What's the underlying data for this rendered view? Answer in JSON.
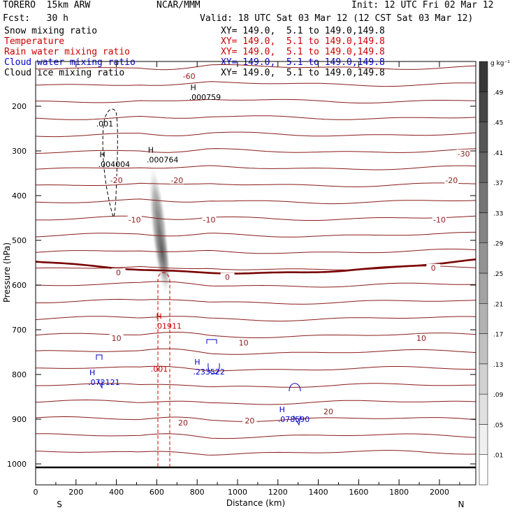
{
  "header": {
    "model": "TORERO  15km ARW",
    "center": "NCAR/MMM",
    "init": "Init: 12 UTC Fri 02 Mar 12",
    "fcst": "Fcst:   30 h",
    "valid": "Valid: 18 UTC Sat 03 Mar 12 (12 CST Sat 03 Mar 12)"
  },
  "legend": [
    {
      "label": "Snow mixing ratio",
      "xy": "XY= 149.0,  5.1 to 149.0,149.8",
      "color": "#000000"
    },
    {
      "label": "Temperature",
      "xy": "XY= 149.0,  5.1 to 149.0,149.8",
      "color": "#cc0000"
    },
    {
      "label": "Rain water mixing ratio",
      "xy": "XY= 149.0,  5.1 to 149.0,149.8",
      "color": "#cc0000"
    },
    {
      "label": "Cloud water mixing ratio",
      "xy": "XY= 149.0,  5.1 to 149.0,149.8",
      "color": "#0000cc"
    },
    {
      "label": "Cloud ice mixing ratio",
      "xy": "XY= 149.0,  5.1 to 149.0,149.8",
      "color": "#000000"
    }
  ],
  "chart_data": {
    "type": "cross-section contour",
    "xlabel": "Distance (km)",
    "ylabel": "Pressure (hPa)",
    "xlim": [
      0,
      2180
    ],
    "ylim": [
      1050,
      100
    ],
    "x_ticks": [
      "0",
      "200",
      "400",
      "600",
      "800",
      "1000",
      "1200",
      "1400",
      "1600",
      "1800",
      "2000"
    ],
    "y_ticks": [
      "200",
      "300",
      "400",
      "500",
      "600",
      "700",
      "800",
      "900",
      "1000"
    ],
    "left_end": "S",
    "right_end": "N",
    "temperature_labels": [
      {
        "x": 760,
        "p": 133,
        "text": "-60"
      },
      {
        "x": 2120,
        "p": 306,
        "text": "-30"
      },
      {
        "x": 400,
        "p": 366,
        "text": "-20"
      },
      {
        "x": 700,
        "p": 366,
        "text": "-20"
      },
      {
        "x": 2060,
        "p": 366,
        "text": "-20"
      },
      {
        "x": 490,
        "p": 454,
        "text": "-10"
      },
      {
        "x": 860,
        "p": 454,
        "text": "-10"
      },
      {
        "x": 2000,
        "p": 454,
        "text": "-10"
      },
      {
        "x": 410,
        "p": 572,
        "text": "0"
      },
      {
        "x": 950,
        "p": 582,
        "text": "0"
      },
      {
        "x": 1970,
        "p": 562,
        "text": "0"
      },
      {
        "x": 400,
        "p": 719,
        "text": "10"
      },
      {
        "x": 1030,
        "p": 729,
        "text": "10"
      },
      {
        "x": 1910,
        "p": 719,
        "text": "10"
      },
      {
        "x": 730,
        "p": 908,
        "text": "20"
      },
      {
        "x": 1060,
        "p": 903,
        "text": "20"
      },
      {
        "x": 1450,
        "p": 883,
        "text": "20"
      }
    ],
    "maxima": [
      {
        "x": 760,
        "p": 170,
        "value": ".000759",
        "color": "#000000"
      },
      {
        "x": 550,
        "p": 310,
        "value": ".000764",
        "color": "#000000"
      },
      {
        "x": 310,
        "p": 320,
        "value": ".004004",
        "color": "#000000"
      },
      {
        "x": 590,
        "p": 682,
        "value": ".01911",
        "color": "#cc0000"
      },
      {
        "x": 260,
        "p": 808,
        "value": ".072121",
        "color": "#0000cc"
      },
      {
        "x": 780,
        "p": 784,
        "value": ".233522",
        "color": "#0000cc"
      },
      {
        "x": 1200,
        "p": 891,
        "value": ".078590",
        "color": "#0000cc"
      }
    ],
    "contour_labels": [
      {
        "x": 300,
        "p": 245,
        "text": ".001",
        "color": "#000000"
      },
      {
        "x": 570,
        "p": 794,
        "text": ".001",
        "color": "#cc0000"
      }
    ],
    "colorbar": {
      "unit": "g kg⁻¹",
      "values": [
        ".01",
        ".05",
        ".09",
        ".13",
        ".17",
        ".21",
        ".25",
        ".29",
        ".33",
        ".37",
        ".41",
        ".45",
        ".49"
      ]
    }
  }
}
